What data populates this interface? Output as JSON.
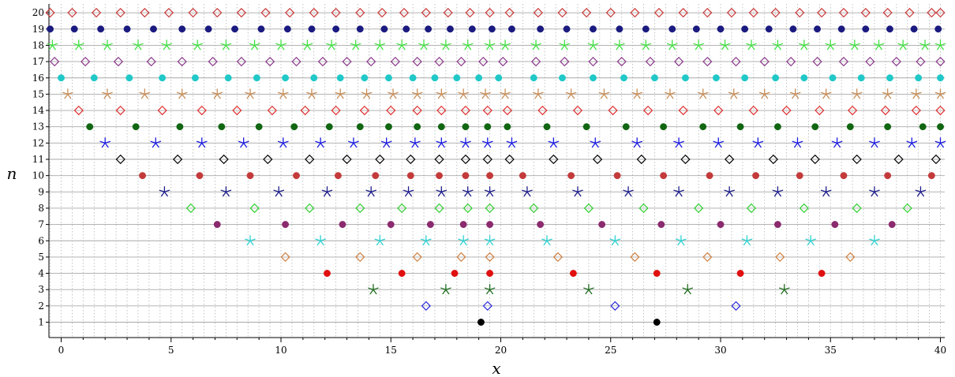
{
  "chart_data": {
    "type": "scatter",
    "xlabel": "x",
    "ylabel": "n",
    "xlim": [
      -0.5,
      40
    ],
    "ylim": [
      0.3,
      20.5
    ],
    "x_ticks": [
      0,
      5,
      10,
      15,
      20,
      25,
      30,
      35,
      40
    ],
    "x_minor_step": 0.5,
    "y_ticks": [
      1,
      2,
      3,
      4,
      5,
      6,
      7,
      8,
      9,
      10,
      11,
      12,
      13,
      14,
      15,
      16,
      17,
      18,
      19,
      20
    ],
    "grid": true,
    "series": [
      {
        "n": 1,
        "marker": "dot",
        "color": "#000000",
        "x": [
          19.1,
          27.1
        ]
      },
      {
        "n": 2,
        "marker": "diamond",
        "color": "#2b2bdc",
        "x": [
          16.6,
          19.4,
          25.2,
          30.7
        ]
      },
      {
        "n": 3,
        "marker": "star",
        "color": "#1e6b1e",
        "x": [
          14.2,
          17.5,
          19.5,
          24.0,
          28.5,
          32.9
        ]
      },
      {
        "n": 4,
        "marker": "dot",
        "color": "#e01010",
        "x": [
          12.1,
          15.5,
          17.9,
          19.5,
          23.3,
          27.1,
          30.9,
          34.6
        ]
      },
      {
        "n": 5,
        "marker": "diamond",
        "color": "#d08040",
        "x": [
          10.2,
          13.6,
          16.2,
          18.2,
          19.5,
          22.6,
          26.1,
          29.4,
          32.7,
          35.9
        ]
      },
      {
        "n": 6,
        "marker": "star",
        "color": "#2ed0d0",
        "x": [
          8.6,
          11.8,
          14.5,
          16.6,
          18.3,
          19.5,
          22.1,
          25.2,
          28.2,
          31.2,
          34.1,
          37.0
        ]
      },
      {
        "n": 7,
        "marker": "dot",
        "color": "#8b2a6e",
        "x": [
          7.1,
          10.2,
          12.8,
          15.0,
          16.8,
          18.3,
          19.5,
          21.8,
          24.6,
          27.3,
          30.0,
          32.6,
          35.2,
          37.8
        ]
      },
      {
        "n": 8,
        "marker": "diamond",
        "color": "#30d030",
        "x": [
          5.9,
          8.8,
          11.3,
          13.6,
          15.5,
          17.2,
          18.5,
          19.5,
          21.5,
          24.0,
          26.5,
          29.0,
          31.4,
          33.8,
          36.2,
          38.5
        ]
      },
      {
        "n": 9,
        "marker": "star",
        "color": "#1e1e8b",
        "x": [
          4.7,
          7.5,
          9.9,
          12.1,
          14.1,
          15.8,
          17.3,
          18.5,
          19.5,
          21.2,
          23.5,
          25.8,
          28.1,
          30.4,
          32.6,
          34.8,
          37.0,
          39.1
        ]
      },
      {
        "n": 10,
        "marker": "dot",
        "color": "#c43a3a",
        "x": [
          3.7,
          6.3,
          8.6,
          10.7,
          12.6,
          14.3,
          15.9,
          17.2,
          18.4,
          19.5,
          21.0,
          23.2,
          25.3,
          27.4,
          29.5,
          31.6,
          33.6,
          35.6,
          37.6,
          39.6
        ]
      },
      {
        "n": 11,
        "marker": "diamond",
        "color": "#000000",
        "x": [
          2.7,
          5.3,
          7.4,
          9.4,
          11.3,
          13.0,
          14.5,
          15.9,
          17.2,
          18.4,
          19.4,
          20.4,
          22.4,
          24.4,
          26.4,
          28.4,
          30.4,
          32.4,
          34.3,
          36.2,
          38.1,
          39.8
        ]
      },
      {
        "n": 12,
        "marker": "star",
        "color": "#1a1ae0",
        "x": [
          2.0,
          4.3,
          6.4,
          8.3,
          10.1,
          11.8,
          13.3,
          14.8,
          16.1,
          17.3,
          18.4,
          19.4,
          20.5,
          22.4,
          24.3,
          26.2,
          28.1,
          29.9,
          31.7,
          33.5,
          35.3,
          37.0,
          38.7,
          40.0
        ]
      },
      {
        "n": 13,
        "marker": "dot",
        "color": "#116611",
        "x": [
          1.3,
          3.4,
          5.4,
          7.3,
          9.0,
          10.6,
          12.2,
          13.6,
          14.9,
          16.2,
          17.3,
          18.4,
          19.4,
          20.3,
          22.1,
          23.9,
          25.7,
          27.4,
          29.2,
          30.9,
          32.6,
          34.3,
          35.9,
          37.6,
          39.2,
          40.0
        ]
      },
      {
        "n": 14,
        "marker": "diamond",
        "color": "#e03030",
        "x": [
          0.8,
          2.7,
          4.6,
          6.4,
          8.0,
          9.6,
          11.1,
          12.5,
          13.8,
          15.0,
          16.2,
          17.3,
          18.4,
          19.4,
          20.3,
          21.9,
          23.5,
          25.1,
          26.7,
          28.3,
          29.9,
          31.5,
          33.0,
          34.5,
          36.0,
          37.5,
          38.9,
          40.0
        ]
      },
      {
        "n": 15,
        "marker": "star",
        "color": "#c88c55",
        "x": [
          0.3,
          2.1,
          3.8,
          5.5,
          7.1,
          8.6,
          10.1,
          11.4,
          12.7,
          13.9,
          15.1,
          16.2,
          17.3,
          18.3,
          19.3,
          20.2,
          21.7,
          23.2,
          24.7,
          26.2,
          27.7,
          29.2,
          30.6,
          32.0,
          33.4,
          34.8,
          36.2,
          37.6,
          38.9,
          40.0
        ]
      },
      {
        "n": 16,
        "marker": "dot",
        "color": "#20c8c8",
        "x": [
          0.0,
          1.5,
          3.1,
          4.6,
          6.1,
          7.6,
          8.9,
          10.2,
          11.5,
          12.7,
          13.8,
          14.9,
          16.0,
          17.0,
          18.0,
          19.0,
          19.9,
          21.5,
          22.8,
          24.2,
          25.6,
          27.0,
          28.4,
          29.8,
          31.1,
          32.5,
          33.8,
          35.1,
          36.4,
          37.7,
          39.0,
          40.0
        ]
      },
      {
        "n": 17,
        "marker": "diamond",
        "color": "#8b3a8b",
        "x": [
          -0.3,
          1.1,
          2.6,
          4.1,
          5.5,
          6.9,
          8.2,
          9.5,
          10.7,
          11.9,
          13.0,
          14.1,
          15.2,
          16.2,
          17.2,
          18.2,
          19.2,
          20.1,
          21.6,
          22.9,
          24.2,
          25.5,
          26.8,
          28.1,
          29.4,
          30.7,
          32.0,
          33.2,
          34.4,
          35.6,
          36.8,
          38.0,
          39.1,
          40.0
        ]
      },
      {
        "n": 18,
        "marker": "star",
        "color": "#40e040",
        "x": [
          -0.4,
          0.8,
          2.1,
          3.5,
          4.8,
          6.2,
          7.5,
          8.8,
          10.0,
          11.2,
          12.3,
          13.4,
          14.5,
          15.5,
          16.5,
          17.5,
          18.5,
          19.5,
          20.2,
          21.6,
          22.9,
          24.2,
          25.4,
          26.6,
          27.8,
          29.0,
          30.2,
          31.4,
          32.6,
          33.8,
          35.0,
          36.1,
          37.2,
          38.3,
          39.3,
          40.0
        ]
      },
      {
        "n": 19,
        "marker": "dot",
        "color": "#1a1a80",
        "x": [
          -0.5,
          0.6,
          1.8,
          3.0,
          4.2,
          5.5,
          6.7,
          7.9,
          9.1,
          10.3,
          11.4,
          12.5,
          13.6,
          14.7,
          15.7,
          16.7,
          17.7,
          18.7,
          19.6,
          20.5,
          21.8,
          23.0,
          24.2,
          25.4,
          26.6,
          27.8,
          28.9,
          30.0,
          31.1,
          32.2,
          33.3,
          34.4,
          35.5,
          36.6,
          37.7,
          38.8,
          39.9
        ]
      },
      {
        "n": 20,
        "marker": "diamond",
        "color": "#c83838",
        "x": [
          -0.5,
          0.5,
          1.6,
          2.7,
          3.8,
          4.9,
          6.0,
          7.1,
          8.2,
          9.3,
          10.4,
          11.5,
          12.5,
          13.6,
          14.6,
          15.6,
          16.6,
          17.6,
          18.6,
          19.5,
          20.4,
          21.7,
          22.8,
          23.9,
          25.0,
          26.1,
          27.2,
          28.3,
          29.4,
          30.5,
          31.5,
          32.5,
          33.6,
          34.6,
          35.6,
          36.6,
          37.6,
          38.6,
          39.6,
          40.0
        ]
      }
    ]
  }
}
